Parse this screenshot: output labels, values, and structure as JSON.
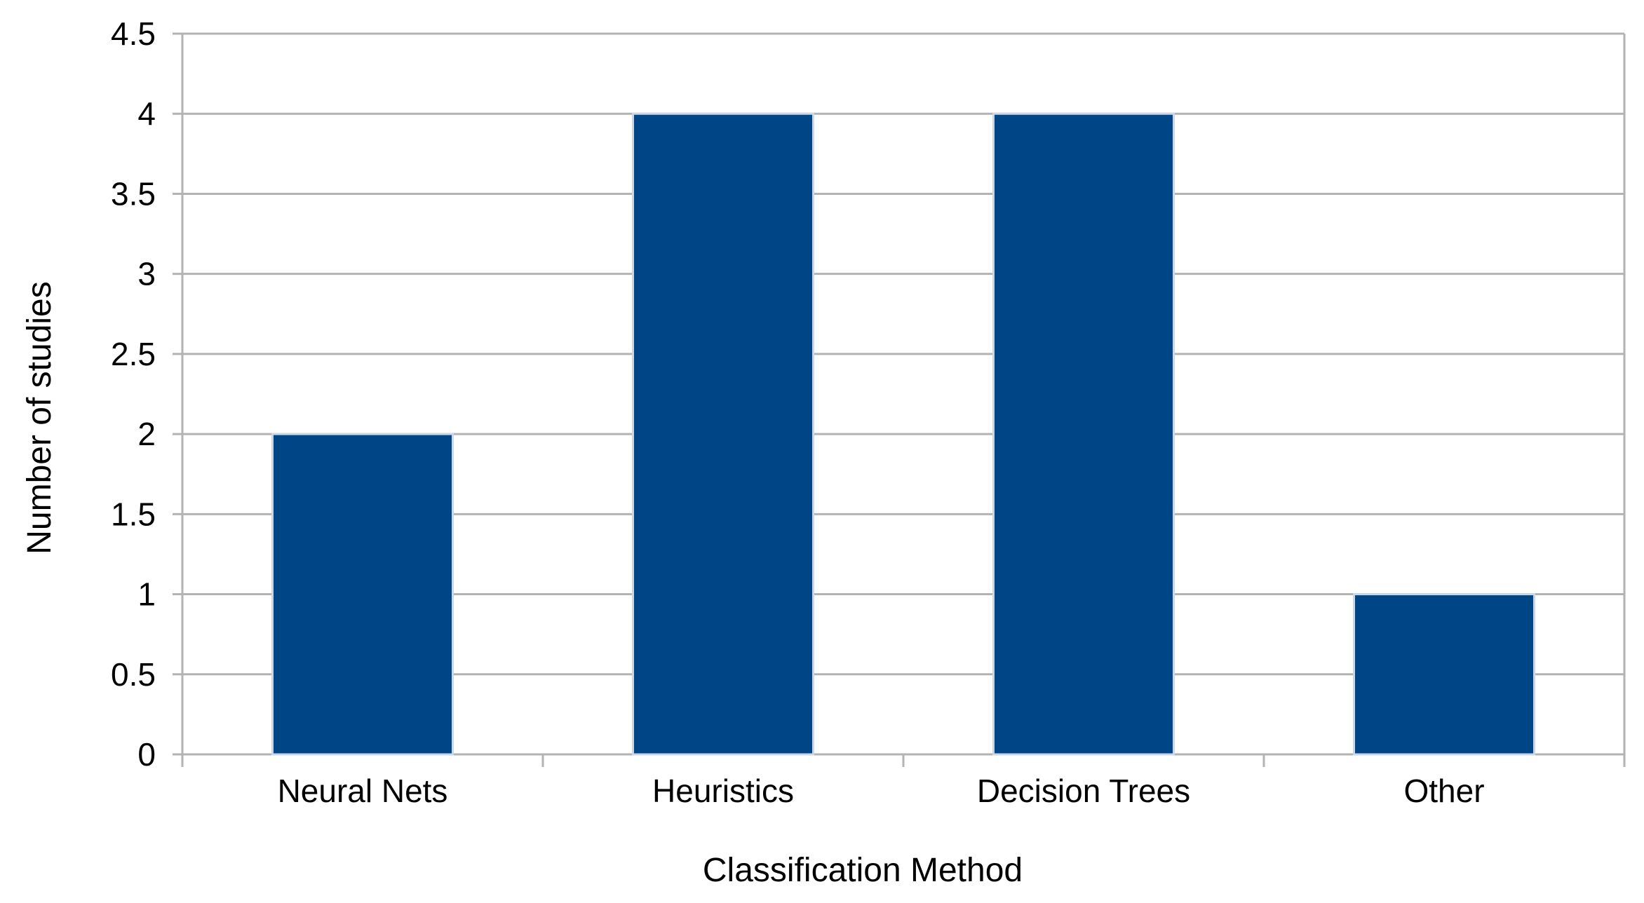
{
  "chart_data": {
    "type": "bar",
    "categories": [
      "Neural Nets",
      "Heuristics",
      "Decision Trees",
      "Other"
    ],
    "values": [
      2,
      4,
      4,
      1
    ],
    "title": "",
    "xlabel": "Classification Method",
    "ylabel": "Number of studies",
    "ylim": [
      0,
      4.5
    ],
    "yticks": [
      "0",
      "0.5",
      "1",
      "1.5",
      "2",
      "2.5",
      "3",
      "3.5",
      "4",
      "4.5"
    ],
    "grid": true,
    "legend": "none",
    "colors": {
      "bar": "#004586",
      "bar_outline": "#c9d7e6",
      "grid": "#b3b3b3",
      "text": "#000000"
    }
  }
}
